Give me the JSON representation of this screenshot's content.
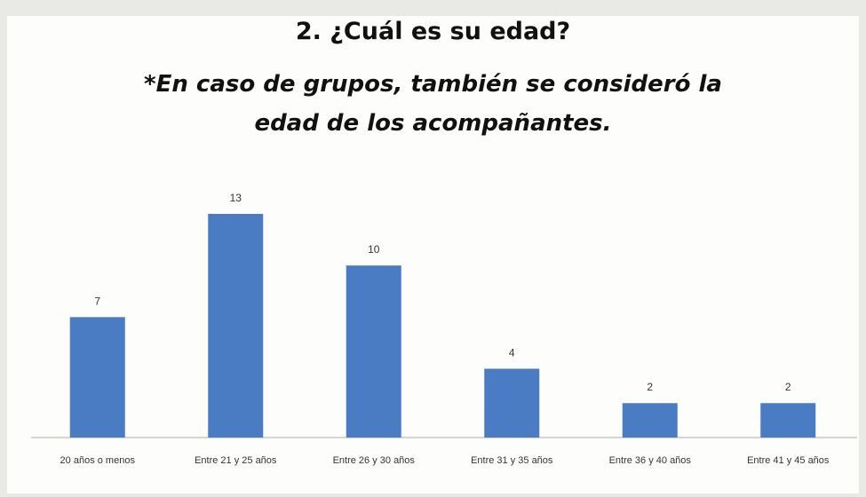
{
  "chart_data": {
    "type": "bar",
    "title": "2. ¿Cuál es su edad?",
    "subtitle": [
      "*En caso de grupos, también se consideró la",
      "edad de los acompañantes."
    ],
    "categories": [
      "20 años o menos",
      "Entre 21 y 25 años",
      "Entre 26 y 30 años",
      "Entre 31 y 35 años",
      "Entre 36 y 40 años",
      "Entre 41 y 45 años"
    ],
    "values": [
      7,
      13,
      10,
      4,
      2,
      2
    ],
    "color": "#4a7cc4"
  }
}
